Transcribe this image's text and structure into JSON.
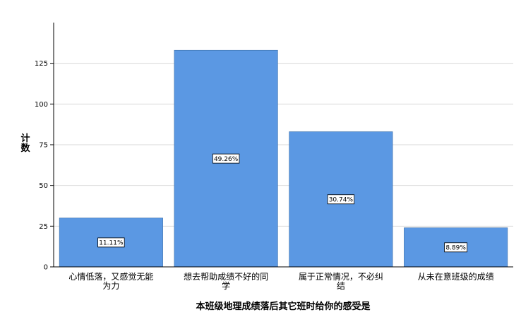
{
  "chart_data": {
    "type": "bar",
    "categories": [
      [
        "心情低落，又感觉无能",
        "为力"
      ],
      [
        "想去帮助成绩不好的同",
        "学"
      ],
      [
        "属于正常情况，不必纠",
        "结"
      ],
      [
        "从未在意班级的成绩"
      ]
    ],
    "values": [
      30,
      133,
      83,
      24
    ],
    "data_labels": [
      "11.11%",
      "49.26%",
      "30.74%",
      "8.89%"
    ],
    "xlabel": "本班级地理成绩落后其它班时给你的感受是",
    "ylabel": "计数",
    "ylim": [
      0,
      150
    ],
    "yticks": [
      0,
      25,
      50,
      75,
      100,
      125
    ],
    "grid": true,
    "colors": {
      "bar": "#5b98e3",
      "bar_edge": "#3d6fa8",
      "grid": "#d9d9d9",
      "axis": "#000000"
    }
  }
}
